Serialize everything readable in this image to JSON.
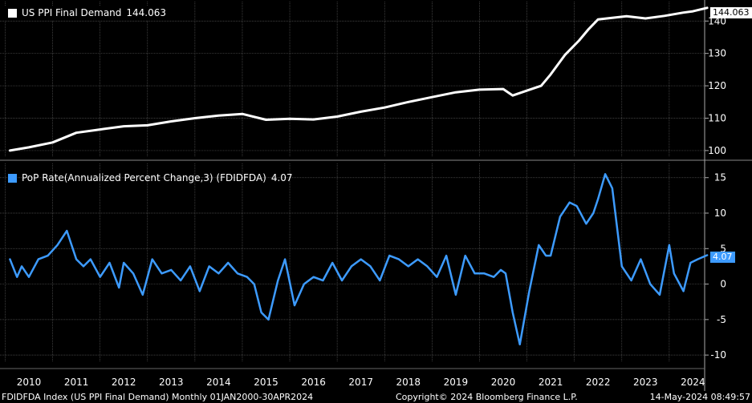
{
  "colors": {
    "background": "#000000",
    "ppi_line": "#ffffff",
    "rate_line": "#3d9bff",
    "grid": "#555555"
  },
  "legend": {
    "top_label": "US PPI Final Demand",
    "top_value": "144.063",
    "bottom_label": "PoP Rate(Annualized Percent Change,3) (FDIDFDA)",
    "bottom_value": "4.07"
  },
  "tags": {
    "top": "144.063",
    "bottom": "4.07"
  },
  "footer": {
    "left": "FDIDFDA Index (US PPI Final Demand)  Monthly 01JAN2000-30APR2024",
    "mid": "Copyright© 2024 Bloomberg Finance L.P.",
    "right": "14-May-2024 08:49:57"
  },
  "chart_data": [
    {
      "type": "line",
      "title": "US PPI Final Demand",
      "x_years": [
        2009.6,
        2010.0,
        2010.5,
        2011.0,
        2011.5,
        2012.0,
        2012.5,
        2013.0,
        2013.5,
        2014.0,
        2014.5,
        2015.0,
        2015.5,
        2016.0,
        2016.5,
        2017.0,
        2017.5,
        2018.0,
        2018.5,
        2019.0,
        2019.5,
        2020.0,
        2020.2,
        2020.5,
        2020.8,
        2021.0,
        2021.3,
        2021.6,
        2021.8,
        2022.0,
        2022.3,
        2022.6,
        2023.0,
        2023.4,
        2023.8,
        2024.0,
        2024.3
      ],
      "values": [
        100.0,
        101.0,
        102.5,
        105.5,
        106.5,
        107.5,
        107.8,
        109.0,
        110.0,
        110.8,
        111.3,
        109.5,
        109.8,
        109.6,
        110.5,
        112.0,
        113.3,
        115.0,
        116.5,
        118.0,
        118.8,
        119.0,
        117.0,
        118.5,
        120.0,
        123.5,
        129.5,
        134.0,
        137.5,
        140.5,
        141.0,
        141.5,
        140.8,
        141.6,
        142.6,
        143.0,
        144.063
      ],
      "yticks": [
        100,
        110,
        120,
        130,
        140
      ],
      "ylim": [
        98,
        146
      ]
    },
    {
      "type": "line",
      "title": "PoP Rate(Annualized Percent Change,3) (FDIDFDA)",
      "x_years": [
        2009.6,
        2009.75,
        2009.85,
        2010.0,
        2010.2,
        2010.4,
        2010.6,
        2010.8,
        2011.0,
        2011.15,
        2011.3,
        2011.5,
        2011.7,
        2011.9,
        2012.0,
        2012.2,
        2012.4,
        2012.5,
        2012.6,
        2012.8,
        2013.0,
        2013.2,
        2013.4,
        2013.6,
        2013.8,
        2014.0,
        2014.2,
        2014.4,
        2014.6,
        2014.75,
        2014.9,
        2015.05,
        2015.25,
        2015.4,
        2015.6,
        2015.8,
        2016.0,
        2016.2,
        2016.4,
        2016.6,
        2016.8,
        2017.0,
        2017.2,
        2017.4,
        2017.6,
        2017.8,
        2018.0,
        2018.2,
        2018.4,
        2018.6,
        2018.8,
        2019.0,
        2019.2,
        2019.4,
        2019.6,
        2019.8,
        2019.95,
        2020.05,
        2020.2,
        2020.35,
        2020.55,
        2020.75,
        2020.9,
        2021.0,
        2021.2,
        2021.4,
        2021.55,
        2021.75,
        2021.9,
        2022.0,
        2022.15,
        2022.3,
        2022.5,
        2022.7,
        2022.9,
        2023.1,
        2023.3,
        2023.5,
        2023.6,
        2023.8,
        2023.95,
        2024.1,
        2024.3
      ],
      "values": [
        3.5,
        1.0,
        2.5,
        1.0,
        3.5,
        4.0,
        5.5,
        7.5,
        3.5,
        2.5,
        3.5,
        1.0,
        3.0,
        -0.5,
        3.0,
        1.5,
        -1.5,
        1.0,
        3.5,
        1.5,
        2.0,
        0.5,
        2.5,
        -1.0,
        2.5,
        1.5,
        3.0,
        1.5,
        1.0,
        0.0,
        -4.0,
        -5.0,
        0.5,
        3.5,
        -3.0,
        0.0,
        1.0,
        0.5,
        3.0,
        0.5,
        2.5,
        3.5,
        2.5,
        0.5,
        4.0,
        3.5,
        2.5,
        3.5,
        2.5,
        1.0,
        4.0,
        -1.5,
        4.0,
        1.5,
        1.5,
        1.0,
        2.0,
        1.5,
        -4.0,
        -8.5,
        -1.0,
        5.5,
        4.0,
        4.0,
        9.5,
        11.5,
        11.0,
        8.5,
        10.0,
        12.0,
        15.5,
        13.5,
        2.5,
        0.5,
        3.5,
        0.0,
        -1.5,
        5.5,
        1.5,
        -1.0,
        3.0,
        3.5,
        4.07
      ],
      "yticks": [
        -10,
        -5,
        0,
        5,
        10,
        15
      ],
      "ylim": [
        -11,
        17
      ]
    }
  ],
  "x_axis": {
    "years": [
      "2010",
      "2011",
      "2012",
      "2013",
      "2014",
      "2015",
      "2016",
      "2017",
      "2018",
      "2019",
      "2020",
      "2021",
      "2022",
      "2023",
      "2024"
    ]
  }
}
